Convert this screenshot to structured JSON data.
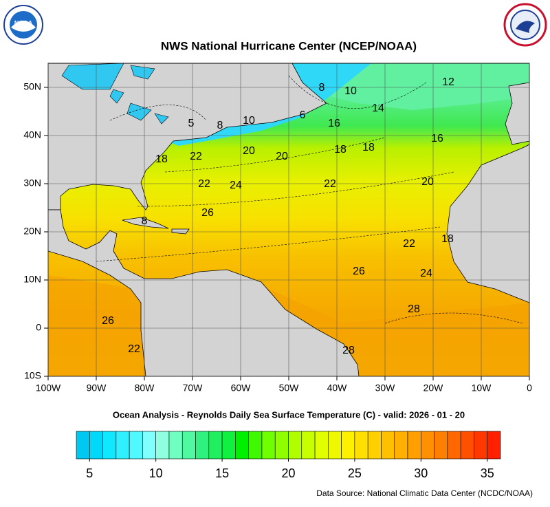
{
  "header": {
    "title": "NWS National Hurricane Center (NCEP/NOAA)",
    "logo_left": "NOAA"
  },
  "map": {
    "x_labels": [
      "100W",
      "90W",
      "80W",
      "70W",
      "60W",
      "50W",
      "40W",
      "30W",
      "20W",
      "10W",
      "0"
    ],
    "y_labels": [
      "50N",
      "40N",
      "30N",
      "20N",
      "10N",
      "0",
      "10S"
    ],
    "contour_labels": [
      "8",
      "10",
      "12",
      "14",
      "16",
      "6",
      "8",
      "10",
      "5",
      "16",
      "18",
      "18",
      "20",
      "20",
      "22",
      "18",
      "22",
      "24",
      "22",
      "20",
      "26",
      "22",
      "18",
      "26",
      "24",
      "28",
      "26",
      "22",
      "28",
      "8"
    ]
  },
  "subtitle": "Ocean Analysis - Reynolds Daily Sea Surface Temperature (C) - valid: 2026 - 01 - 20",
  "colorbar": {
    "min": 4,
    "max": 36,
    "ticks": [
      5,
      10,
      15,
      20,
      25,
      30,
      35
    ],
    "colors": [
      "#00c8f0",
      "#00d8f8",
      "#10e8ff",
      "#30f0ff",
      "#50f8ff",
      "#80ffff",
      "#90ffe0",
      "#70ffc0",
      "#50f8a0",
      "#30f080",
      "#20f060",
      "#10f040",
      "#00f000",
      "#40f800",
      "#70ff00",
      "#90ff00",
      "#b0ff00",
      "#c8ff00",
      "#e0ff00",
      "#f0f800",
      "#fff000",
      "#ffe000",
      "#ffd000",
      "#ffc000",
      "#ffb000",
      "#ffa000",
      "#ff9000",
      "#ff8000",
      "#ff6800",
      "#ff5000",
      "#ff3800",
      "#ff2000"
    ]
  },
  "footer": {
    "source": "Data Source: National Climatic Data Center (NCDC/NOAA)"
  }
}
